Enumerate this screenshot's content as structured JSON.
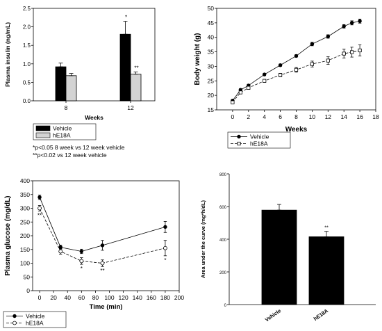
{
  "chart_data": [
    {
      "type": "bar",
      "ylabel": "Plasma insulin (ng/mL)",
      "xlabel": "Weeks",
      "categories": [
        "8",
        "12"
      ],
      "ylim": [
        0,
        2.5
      ],
      "yticks": [
        "0.0",
        "0.5",
        "1.0",
        "1.5",
        "2.0",
        "2.5"
      ],
      "series": [
        {
          "name": "Vehicle",
          "values": [
            0.92,
            1.8
          ],
          "errors": [
            0.1,
            0.35
          ],
          "color": "#000000"
        },
        {
          "name": "hE18A",
          "values": [
            0.68,
            0.72
          ],
          "errors": [
            0.06,
            0.06
          ],
          "color": "#d3d3d3"
        }
      ],
      "annotations": [
        {
          "text": "*",
          "category": "12",
          "series": "Vehicle"
        },
        {
          "text": "**",
          "category": "12",
          "series": "hE18A"
        }
      ],
      "legend": "below",
      "notes": [
        "*p<0.05 8 week vs 12 week vehicle",
        "**p<0.02 vs 12 week vehicle"
      ]
    },
    {
      "type": "line",
      "ylabel": "Body weight (g)",
      "xlabel": "Weeks",
      "xlim": [
        -2,
        18
      ],
      "ylim": [
        15,
        50
      ],
      "xticks": [
        "0",
        "2",
        "4",
        "6",
        "8",
        "10",
        "12",
        "14",
        "16",
        "18"
      ],
      "yticks": [
        "15",
        "20",
        "25",
        "30",
        "35",
        "40",
        "45",
        "50"
      ],
      "series": [
        {
          "name": "Vehicle",
          "x": [
            0,
            1,
            2,
            4,
            6,
            8,
            10,
            12,
            14,
            15,
            16
          ],
          "y": [
            18.2,
            21.9,
            23.4,
            27.2,
            30.4,
            33.6,
            37.7,
            40.3,
            43.8,
            45.0,
            45.6
          ],
          "errors": [
            0.4,
            0.4,
            0.4,
            0.4,
            0.4,
            0.4,
            0.6,
            0.6,
            0.6,
            0.7,
            0.7
          ],
          "marker": "filled-circle",
          "dash": "solid"
        },
        {
          "name": "hE18A",
          "x": [
            0,
            1,
            2,
            4,
            6,
            8,
            10,
            12,
            14,
            15,
            16
          ],
          "y": [
            17.6,
            21.0,
            22.6,
            25.0,
            27.0,
            28.8,
            30.8,
            32.0,
            34.4,
            34.9,
            35.5
          ],
          "errors": [
            0.5,
            0.5,
            0.5,
            0.5,
            0.6,
            0.8,
            1.0,
            1.3,
            1.5,
            1.7,
            1.9
          ],
          "marker": "open-square",
          "dash": "dashed"
        }
      ],
      "legend": "below"
    },
    {
      "type": "line",
      "ylabel": "Plasma glucose (mg/dL)",
      "xlabel": "Time (min)",
      "xlim": [
        -10,
        200
      ],
      "ylim": [
        0,
        400
      ],
      "xticks": [
        "0",
        "20",
        "40",
        "60",
        "80",
        "100",
        "120",
        "140",
        "160",
        "180",
        "200"
      ],
      "yticks": [
        "0",
        "50",
        "100",
        "150",
        "200",
        "250",
        "300",
        "350",
        "400"
      ],
      "series": [
        {
          "name": "Vehicle",
          "x": [
            0,
            30,
            60,
            90,
            180
          ],
          "y": [
            340,
            158,
            143,
            165,
            232
          ],
          "errors": [
            8,
            8,
            8,
            18,
            20
          ],
          "marker": "filled-circle",
          "dash": "solid"
        },
        {
          "name": "hE18A",
          "x": [
            0,
            30,
            60,
            90,
            180
          ],
          "y": [
            300,
            143,
            108,
            100,
            155
          ],
          "errors": [
            10,
            10,
            12,
            12,
            28
          ],
          "marker": "open-circle",
          "dash": "dashed"
        }
      ],
      "annotations": [
        {
          "text": "**",
          "x": 0,
          "series": "hE18A"
        },
        {
          "text": "*",
          "x": 60,
          "series": "hE18A"
        },
        {
          "text": "**",
          "x": 90,
          "series": "hE18A"
        },
        {
          "text": "*",
          "x": 180,
          "series": "hE18A"
        }
      ],
      "legend": "below"
    },
    {
      "type": "bar",
      "ylabel": "Area under the curve (mg*h/dL)",
      "categories": [
        "Vehicle",
        "hE18A"
      ],
      "ylim": [
        0,
        800
      ],
      "yticks": [
        "0",
        "200",
        "400",
        "600",
        "800"
      ],
      "values": [
        578,
        415
      ],
      "errors": [
        35,
        33
      ],
      "color": "#000000",
      "annotations": [
        {
          "text": "**",
          "category": "hE18A"
        }
      ]
    }
  ]
}
